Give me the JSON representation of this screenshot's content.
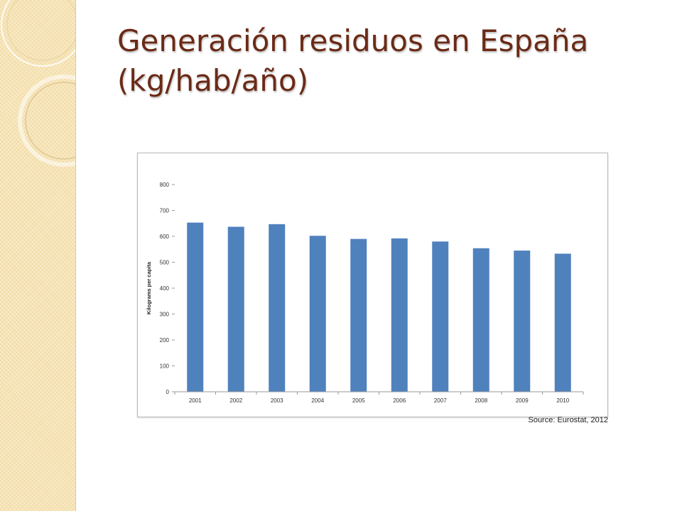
{
  "slide": {
    "title": "Generación residuos en España (kg/hab/año)",
    "title_color": "#6b2a16",
    "sidebar_color": "#f7e4b5"
  },
  "chart_data": {
    "type": "bar",
    "title": "",
    "xlabel": "",
    "ylabel": "Kilograms per capita",
    "categories": [
      "2001",
      "2002",
      "2003",
      "2004",
      "2005",
      "2006",
      "2007",
      "2008",
      "2009",
      "2010"
    ],
    "values": [
      653,
      637,
      647,
      602,
      590,
      592,
      580,
      554,
      545,
      533
    ],
    "ylim": [
      0,
      800
    ],
    "yticks": [
      "0",
      "100",
      "200",
      "300",
      "400",
      "500",
      "600",
      "700",
      "800"
    ],
    "bar_color": "#4f81bd",
    "grid": false,
    "legend": "none",
    "source": "Source: Eurostat, 2012"
  }
}
